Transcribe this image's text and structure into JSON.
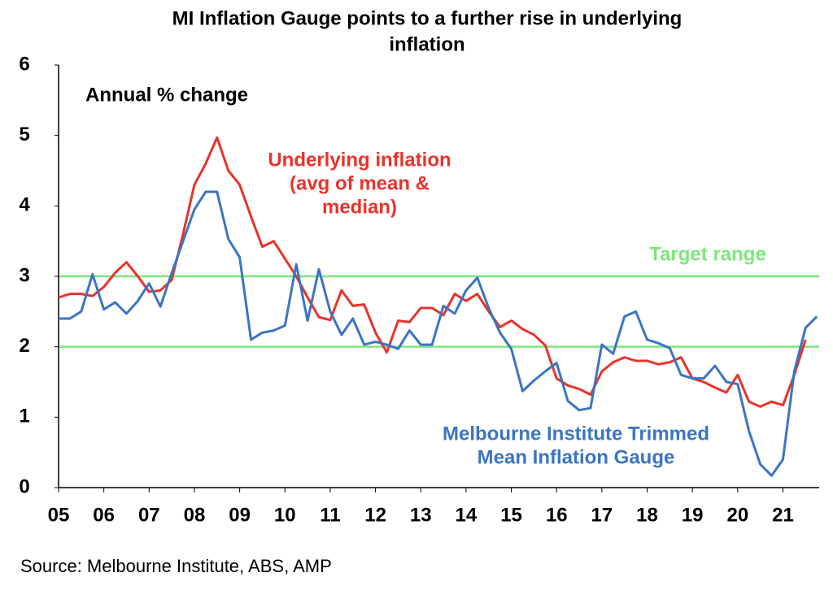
{
  "chart_data": {
    "type": "line",
    "title": [
      "MI Inflation Gauge points to a further rise in underlying",
      "inflation"
    ],
    "subtitle": "Annual % change",
    "source": "Source: Melbourne Institute, ABS, AMP",
    "xlim": [
      2005,
      2021.8
    ],
    "ylim": [
      0,
      6
    ],
    "yticks": [
      0,
      1,
      2,
      3,
      4,
      5,
      6
    ],
    "xticks": [
      {
        "value": 2005,
        "label": "05"
      },
      {
        "value": 2006,
        "label": "06"
      },
      {
        "value": 2007,
        "label": "07"
      },
      {
        "value": 2008,
        "label": "08"
      },
      {
        "value": 2009,
        "label": "09"
      },
      {
        "value": 2010,
        "label": "10"
      },
      {
        "value": 2011,
        "label": "11"
      },
      {
        "value": 2012,
        "label": "12"
      },
      {
        "value": 2013,
        "label": "13"
      },
      {
        "value": 2014,
        "label": "14"
      },
      {
        "value": 2015,
        "label": "15"
      },
      {
        "value": 2016,
        "label": "16"
      },
      {
        "value": 2017,
        "label": "17"
      },
      {
        "value": 2018,
        "label": "18"
      },
      {
        "value": 2019,
        "label": "19"
      },
      {
        "value": 2020,
        "label": "20"
      },
      {
        "value": 2021,
        "label": "21"
      }
    ],
    "target_range": {
      "label": "Target range",
      "color": "#7be87b",
      "values": [
        2,
        3
      ]
    },
    "series": [
      {
        "name": [
          "Underlying inflation",
          "(avg of mean &",
          "median)"
        ],
        "color": "#e8332a",
        "x": [
          2005,
          2005.25,
          2005.5,
          2005.75,
          2006,
          2006.25,
          2006.5,
          2006.75,
          2007,
          2007.25,
          2007.5,
          2007.75,
          2008,
          2008.25,
          2008.5,
          2008.75,
          2009,
          2009.25,
          2009.5,
          2009.75,
          2010,
          2010.25,
          2010.5,
          2010.75,
          2011,
          2011.25,
          2011.5,
          2011.75,
          2012,
          2012.25,
          2012.5,
          2012.75,
          2013,
          2013.25,
          2013.5,
          2013.75,
          2014,
          2014.25,
          2014.5,
          2014.75,
          2015,
          2015.25,
          2015.5,
          2015.75,
          2016,
          2016.25,
          2016.5,
          2016.75,
          2017,
          2017.25,
          2017.5,
          2017.75,
          2018,
          2018.25,
          2018.5,
          2018.75,
          2019,
          2019.25,
          2019.5,
          2019.75,
          2020,
          2020.25,
          2020.5,
          2020.75,
          2021,
          2021.25,
          2021.5
        ],
        "values": [
          2.7,
          2.75,
          2.75,
          2.72,
          2.85,
          3.05,
          3.2,
          3.0,
          2.78,
          2.8,
          2.95,
          3.6,
          4.3,
          4.6,
          4.97,
          4.5,
          4.3,
          3.85,
          3.42,
          3.5,
          3.25,
          3.0,
          2.7,
          2.42,
          2.38,
          2.8,
          2.58,
          2.6,
          2.2,
          1.92,
          2.37,
          2.35,
          2.55,
          2.55,
          2.45,
          2.75,
          2.65,
          2.75,
          2.5,
          2.28,
          2.37,
          2.25,
          2.17,
          2.02,
          1.55,
          1.45,
          1.4,
          1.32,
          1.65,
          1.78,
          1.85,
          1.8,
          1.8,
          1.75,
          1.78,
          1.85,
          1.55,
          1.5,
          1.42,
          1.35,
          1.6,
          1.22,
          1.15,
          1.22,
          1.17,
          1.6,
          2.1
        ]
      },
      {
        "name": [
          "Melbourne Institute Trimmed",
          "Mean Inflation Gauge"
        ],
        "color": "#3a75c4",
        "x": [
          2005,
          2005.25,
          2005.5,
          2005.75,
          2006,
          2006.25,
          2006.5,
          2006.75,
          2007,
          2007.25,
          2007.5,
          2007.75,
          2008,
          2008.25,
          2008.5,
          2008.75,
          2009,
          2009.25,
          2009.5,
          2009.75,
          2010,
          2010.25,
          2010.5,
          2010.75,
          2011,
          2011.25,
          2011.5,
          2011.75,
          2012,
          2012.25,
          2012.5,
          2012.75,
          2013,
          2013.25,
          2013.5,
          2013.75,
          2014,
          2014.25,
          2014.5,
          2014.75,
          2015,
          2015.25,
          2015.5,
          2015.75,
          2016,
          2016.25,
          2016.5,
          2016.75,
          2017,
          2017.25,
          2017.5,
          2017.75,
          2018,
          2018.25,
          2018.5,
          2018.75,
          2019,
          2019.25,
          2019.5,
          2019.75,
          2020,
          2020.25,
          2020.5,
          2020.75,
          2021,
          2021.25,
          2021.5,
          2021.75
        ],
        "values": [
          2.4,
          2.4,
          2.5,
          3.03,
          2.53,
          2.63,
          2.47,
          2.65,
          2.9,
          2.57,
          3.05,
          3.5,
          3.95,
          4.2,
          4.2,
          3.53,
          3.27,
          2.1,
          2.2,
          2.23,
          2.3,
          3.17,
          2.37,
          3.1,
          2.5,
          2.17,
          2.4,
          2.03,
          2.07,
          2.03,
          1.97,
          2.23,
          2.03,
          2.03,
          2.58,
          2.47,
          2.8,
          2.98,
          2.55,
          2.2,
          1.97,
          1.37,
          1.52,
          1.65,
          1.77,
          1.23,
          1.1,
          1.13,
          2.03,
          1.9,
          2.43,
          2.5,
          2.1,
          2.05,
          1.98,
          1.6,
          1.55,
          1.55,
          1.73,
          1.5,
          1.47,
          0.8,
          0.33,
          0.17,
          0.4,
          1.65,
          2.27,
          2.43
        ]
      }
    ]
  }
}
